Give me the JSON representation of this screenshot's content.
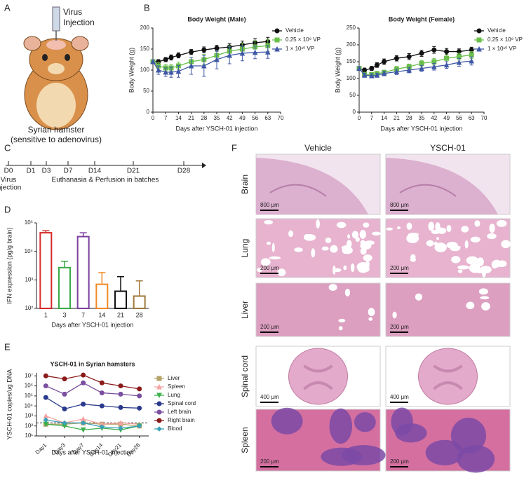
{
  "panels": [
    "A",
    "B",
    "C",
    "D",
    "E",
    "F"
  ],
  "panel_a": {
    "injection": [
      "Virus",
      "Injection"
    ],
    "caption": [
      "Syrian hamster",
      "(sensitive to adenovirus)"
    ]
  },
  "panel_c": {
    "days": [
      "D0",
      "D1",
      "D3",
      "D7",
      "D14",
      "D21",
      "D28"
    ],
    "start": [
      "Virus",
      "injection"
    ],
    "label": "Euthanasia & Perfusion in batches"
  },
  "panel_f": {
    "columns": [
      "Vehicle",
      "YSCH-01"
    ],
    "rows": [
      {
        "organ": "Brain",
        "scale_bars": [
          "800 μm",
          "800 μm"
        ]
      },
      {
        "organ": "Lung",
        "scale_bars": [
          "200 μm",
          "200 μm"
        ]
      },
      {
        "organ": "Liver",
        "scale_bars": [
          "200 μm",
          "200 μm"
        ]
      },
      {
        "organ": "Spinal cord",
        "scale_bars": [
          "400 μm",
          "400 μm"
        ]
      },
      {
        "organ": "Spleen",
        "scale_bars": [
          "200 μm",
          "200 μm"
        ]
      }
    ]
  },
  "chart_data": [
    {
      "type": "line",
      "title": "Body Weight (Male)",
      "x_label": "Days after YSCH-01 injection",
      "y_label": "Body Weight (g)",
      "x": [
        0,
        3,
        7,
        10,
        14,
        21,
        28,
        35,
        42,
        49,
        56,
        63
      ],
      "xlim": [
        0,
        70
      ],
      "xticks": [
        0,
        7,
        14,
        21,
        28,
        35,
        42,
        49,
        56,
        63,
        70
      ],
      "ylim": [
        0,
        200
      ],
      "yticks": [
        0,
        50,
        100,
        150,
        200
      ],
      "legend": "upper right",
      "series": [
        {
          "name": "Vehicle",
          "color": "#111111",
          "marker": "circle",
          "values": [
            120,
            120,
            125,
            130,
            135,
            143,
            148,
            152,
            155,
            160,
            165,
            168
          ],
          "errors": [
            4,
            5,
            5,
            6,
            6,
            6,
            7,
            7,
            8,
            9,
            10,
            10
          ]
        },
        {
          "name": "0.25 × 10⁹ VP",
          "color": "#6abf4b",
          "marker": "square",
          "values": [
            120,
            110,
            105,
            105,
            110,
            120,
            125,
            135,
            145,
            150,
            155,
            158
          ],
          "errors": [
            4,
            8,
            8,
            8,
            9,
            10,
            12,
            12,
            12,
            14,
            15,
            14
          ]
        },
        {
          "name": "1 × 10¹⁰ VP",
          "color": "#3f57a6",
          "marker": "triangle",
          "values": [
            120,
            100,
            95,
            95,
            97,
            110,
            110,
            125,
            135,
            140,
            142,
            143
          ],
          "errors": [
            4,
            10,
            10,
            12,
            14,
            20,
            25,
            22,
            20,
            18,
            15,
            15
          ]
        }
      ]
    },
    {
      "type": "line",
      "title": "Body Weight (Female)",
      "x_label": "Days after YSCH-01 injection",
      "y_label": "Body Weight (g)",
      "x": [
        0,
        3,
        7,
        10,
        14,
        21,
        28,
        35,
        42,
        49,
        56,
        63
      ],
      "xlim": [
        0,
        70
      ],
      "xticks": [
        0,
        7,
        14,
        21,
        28,
        35,
        42,
        49,
        56,
        63,
        70
      ],
      "ylim": [
        0,
        250
      ],
      "yticks": [
        0,
        50,
        100,
        150,
        200,
        250
      ],
      "legend": "upper right",
      "series": [
        {
          "name": "Vehicle",
          "color": "#111111",
          "marker": "circle",
          "values": [
            130,
            125,
            130,
            140,
            150,
            160,
            165,
            175,
            185,
            180,
            180,
            185
          ],
          "errors": [
            5,
            6,
            6,
            7,
            8,
            8,
            9,
            9,
            10,
            9,
            8,
            8
          ]
        },
        {
          "name": "0.25 × 10⁹ VP",
          "color": "#6abf4b",
          "marker": "square",
          "values": [
            130,
            112,
            112,
            115,
            118,
            128,
            135,
            145,
            150,
            160,
            165,
            170
          ],
          "errors": [
            5,
            6,
            6,
            6,
            7,
            8,
            8,
            9,
            10,
            10,
            10,
            10
          ]
        },
        {
          "name": "1 × 10¹⁰ VP",
          "color": "#3f57a6",
          "marker": "triangle",
          "values": [
            130,
            110,
            108,
            110,
            115,
            120,
            125,
            130,
            135,
            140,
            148,
            152
          ],
          "errors": [
            5,
            6,
            6,
            6,
            7,
            8,
            8,
            9,
            10,
            10,
            12,
            12
          ]
        }
      ]
    },
    {
      "type": "bar",
      "x_label": "Days after YSCH-01 injection",
      "y_label": "IFN expression (pg/g brain)",
      "log_scale": true,
      "categories": [
        "1",
        "3",
        "7",
        "14",
        "21",
        "28"
      ],
      "values": [
        45000,
        2700,
        33000,
        700,
        400,
        270
      ],
      "errors": [
        8000,
        1800,
        12000,
        1100,
        900,
        650
      ],
      "colors": [
        "#d62a2a",
        "#3aa845",
        "#7b3fa0",
        "#f08a24",
        "#111111",
        "#a0783c"
      ],
      "ylim": [
        100,
        100000
      ],
      "yticks": [
        {
          "value": 100,
          "label": "10²"
        },
        {
          "value": 1000,
          "label": "10³"
        },
        {
          "value": 10000,
          "label": "10⁴"
        },
        {
          "value": 100000,
          "label": "10⁵"
        }
      ]
    },
    {
      "type": "line",
      "title": "YSCH-01 in Syrian hamsters",
      "x_label": "Days after YSCH-01 injection",
      "y_label": "YSCH-01 copies/ug DNA",
      "log_scale": true,
      "categories": [
        "Day1",
        "Day3",
        "Day7",
        "Day14",
        "Day21",
        "Day28"
      ],
      "reference_line": 200,
      "legend": "right",
      "ylim": [
        10,
        20000000
      ],
      "yticks": [
        {
          "value": 10,
          "label": "10¹"
        },
        {
          "value": 100,
          "label": "10²"
        },
        {
          "value": 1000,
          "label": "10³"
        },
        {
          "value": 10000,
          "label": "10⁴"
        },
        {
          "value": 100000,
          "label": "10⁵"
        },
        {
          "value": 1000000,
          "label": "10⁶"
        },
        {
          "value": 10000000,
          "label": "10⁷"
        }
      ],
      "series": [
        {
          "name": "Liver",
          "color": "#b5a36a",
          "marker": "square",
          "values": [
            150,
            150,
            200,
            150,
            150,
            100
          ]
        },
        {
          "name": "Spleen",
          "color": "#f4a3a3",
          "marker": "triangle",
          "values": [
            1000,
            200,
            500,
            150,
            200,
            150
          ]
        },
        {
          "name": "Lung",
          "color": "#3cb04a",
          "marker": "triangle-down",
          "values": [
            150,
            100,
            40,
            60,
            40,
            100
          ]
        },
        {
          "name": "Spinal cord",
          "color": "#2b3a8c",
          "marker": "circle",
          "values": [
            70000,
            5000,
            15000,
            10000,
            7000,
            6000
          ]
        },
        {
          "name": "Left brain",
          "color": "#7b4fa0",
          "marker": "circle",
          "values": [
            1000000,
            150000,
            2000000,
            200000,
            150000,
            100000
          ]
        },
        {
          "name": "Right brain",
          "color": "#8b1a1a",
          "marker": "circle",
          "values": [
            10000000,
            5000000,
            12000000,
            2000000,
            1000000,
            500000
          ]
        },
        {
          "name": "Blood",
          "color": "#3aa0b8",
          "marker": "diamond",
          "values": [
            400,
            200,
            200,
            80,
            60,
            100
          ]
        }
      ]
    }
  ]
}
